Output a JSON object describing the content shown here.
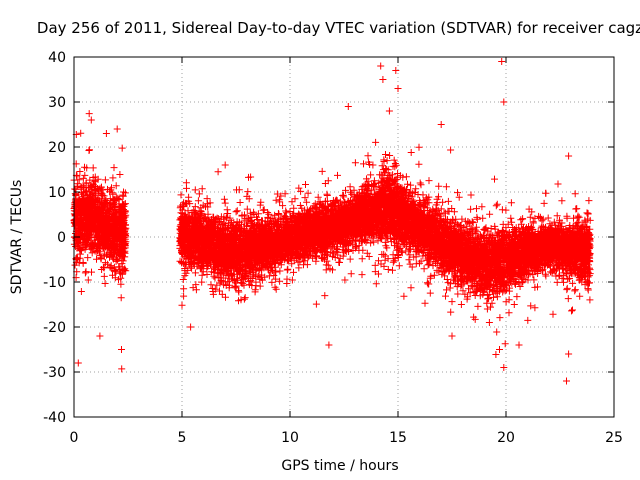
{
  "chart_data": {
    "type": "scatter",
    "title": "Day 256 of 2011, Sidereal Day-to-day VTEC variation (SDTVAR) for receiver cagz",
    "xlabel": "GPS time / hours",
    "ylabel": "SDTVAR / TECUs",
    "xlim": [
      0,
      25
    ],
    "ylim": [
      -40,
      40
    ],
    "xticks": [
      0,
      5,
      10,
      15,
      20,
      25
    ],
    "yticks": [
      -40,
      -30,
      -20,
      -10,
      0,
      10,
      20,
      30,
      40
    ],
    "grid": true,
    "marker": "+",
    "marker_color": "#ff0000",
    "legend": "none",
    "series": [
      {
        "name": "SDTVAR",
        "segments": [
          {
            "t_start": 0.0,
            "t_end": 2.4
          },
          {
            "t_start": 4.9,
            "t_end": 23.9
          }
        ],
        "trend": {
          "t": [
            0.0,
            0.5,
            1.0,
            1.5,
            2.0,
            2.4,
            4.9,
            6.0,
            7.0,
            8.0,
            9.0,
            10.0,
            11.0,
            12.0,
            13.0,
            13.5,
            14.0,
            14.5,
            15.0,
            16.0,
            17.0,
            18.0,
            19.0,
            20.0,
            21.0,
            22.0,
            23.0,
            23.9
          ],
          "mean": [
            3,
            4,
            4,
            2,
            1,
            0,
            1,
            -1,
            -3,
            -3,
            -2,
            0,
            1,
            2,
            4,
            5,
            6,
            7,
            5,
            2,
            -1,
            -4,
            -6,
            -5,
            -3,
            -2,
            -3,
            -3
          ],
          "spread": [
            7,
            7,
            7,
            7,
            8,
            8,
            6,
            6,
            6,
            6,
            5,
            5,
            5,
            5,
            5,
            5,
            6,
            8,
            7,
            5,
            6,
            6,
            6,
            6,
            5,
            4,
            5,
            6
          ]
        },
        "outliers": [
          {
            "x": 0.2,
            "y": -28
          },
          {
            "x": 0.8,
            "y": 26
          },
          {
            "x": 1.2,
            "y": -22
          },
          {
            "x": 1.5,
            "y": 23
          },
          {
            "x": 2.0,
            "y": 24
          },
          {
            "x": 2.2,
            "y": -25
          },
          {
            "x": 5.4,
            "y": -20
          },
          {
            "x": 7.0,
            "y": 16
          },
          {
            "x": 11.8,
            "y": -24
          },
          {
            "x": 12.7,
            "y": 29
          },
          {
            "x": 14.2,
            "y": 38
          },
          {
            "x": 14.3,
            "y": 35
          },
          {
            "x": 14.6,
            "y": 28
          },
          {
            "x": 14.9,
            "y": 37
          },
          {
            "x": 15.0,
            "y": 33
          },
          {
            "x": 17.0,
            "y": 25
          },
          {
            "x": 17.5,
            "y": -22
          },
          {
            "x": 19.8,
            "y": 39
          },
          {
            "x": 19.9,
            "y": 30
          },
          {
            "x": 19.7,
            "y": -25
          },
          {
            "x": 19.9,
            "y": -29
          },
          {
            "x": 20.6,
            "y": -24
          },
          {
            "x": 22.8,
            "y": -32
          },
          {
            "x": 22.9,
            "y": 18
          },
          {
            "x": 22.9,
            "y": -26
          }
        ]
      }
    ]
  }
}
